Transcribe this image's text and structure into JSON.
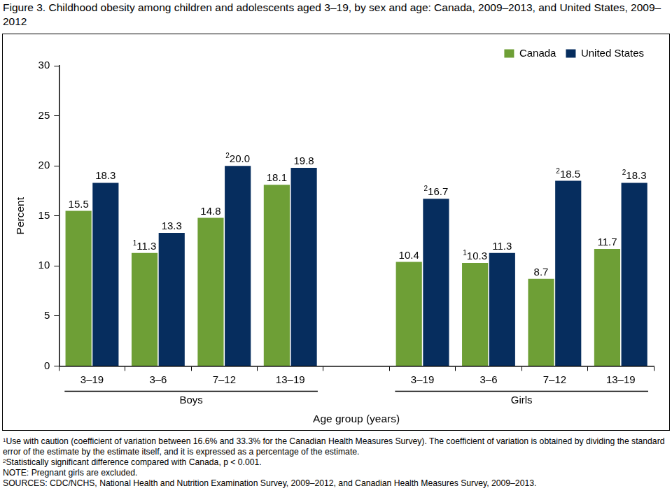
{
  "chart_data": {
    "type": "bar",
    "title": "Figure 3. Childhood obesity among children and adolescents aged 3–19, by sex and age: Canada, 2009–2013, and United States, 2009–2012",
    "categories": [
      "3–19",
      "3–6",
      "7–12",
      "13–19",
      null,
      "3–19",
      "3–6",
      "7–12",
      "13–19"
    ],
    "groups": [
      "Boys",
      "Boys",
      "Boys",
      "Boys",
      null,
      "Girls",
      "Girls",
      "Girls",
      "Girls"
    ],
    "series": [
      {
        "name": "Canada",
        "color": "#6e9f36",
        "values": [
          15.5,
          11.3,
          14.8,
          18.1,
          null,
          10.4,
          10.3,
          8.7,
          11.7
        ],
        "value_labels": [
          "15.5",
          "11.3",
          "14.8",
          "18.1",
          null,
          "10.4",
          "10.3",
          "8.7",
          "11.7"
        ],
        "value_notes": [
          null,
          "1",
          null,
          null,
          null,
          null,
          "1",
          null,
          null
        ]
      },
      {
        "name": "United States",
        "color": "#062d5e",
        "values": [
          18.3,
          13.3,
          20.0,
          19.8,
          null,
          16.7,
          11.3,
          18.5,
          18.3
        ],
        "value_labels": [
          "18.3",
          "13.3",
          "20.0",
          "19.8",
          null,
          "16.7",
          "11.3",
          "18.5",
          "18.3"
        ],
        "value_notes": [
          null,
          null,
          "2",
          null,
          null,
          "2",
          null,
          "2",
          "2"
        ]
      }
    ],
    "xlabel": "Age group (years)",
    "ylabel": "Percent",
    "ylim": [
      0,
      30
    ],
    "yticks": [
      0,
      5,
      10,
      15,
      20,
      25,
      30
    ],
    "grid": false,
    "legend": "top-right",
    "data_labels": true,
    "footnotes": [
      {
        "mark": "1",
        "text": "Use with caution (coefficient of variation between 16.6% and 33.3% for the Canadian Health Measures Survey). The coefficient of variation is obtained by dividing the standard error of the estimate by the estimate itself, and it is expressed as a percentage of the estimate."
      },
      {
        "mark": "2",
        "text": "Statistically significant difference compared with Canada, p < 0.001."
      }
    ],
    "note": "NOTE: Pregnant girls are excluded.",
    "source": "SOURCES: CDC/NCHS, National Health and Nutrition Examination Survey, 2009–2012, and Canadian Health Measures Survey, 2009–2013."
  }
}
